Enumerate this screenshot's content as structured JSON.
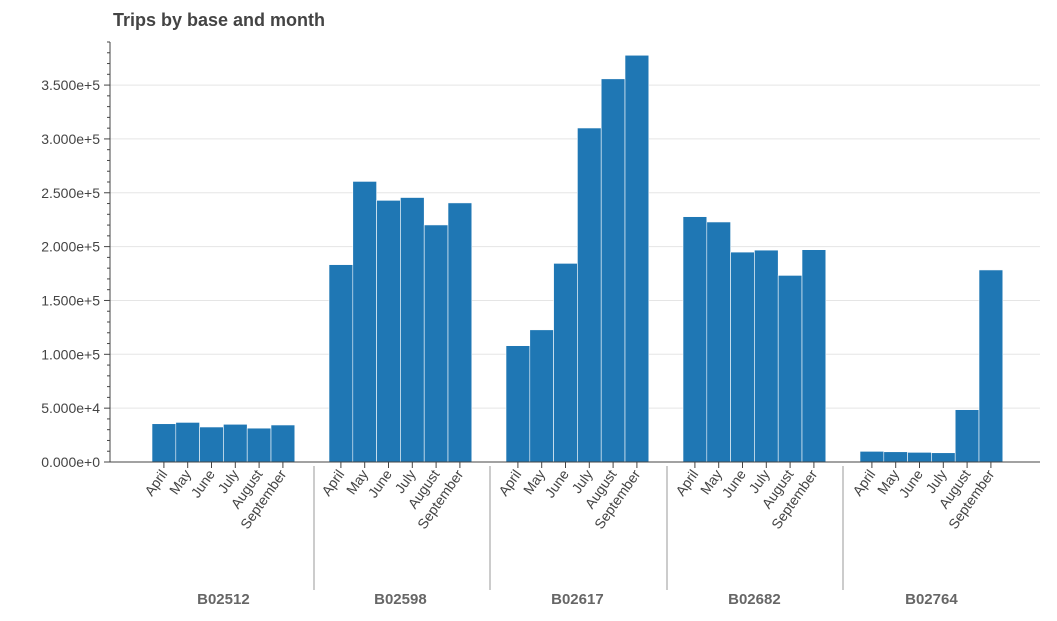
{
  "chart_data": {
    "type": "bar",
    "title": "Trips by base and month",
    "xlabel": "",
    "ylabel": "",
    "ylim": [
      0,
      390000
    ],
    "yticks": [
      {
        "value": 0,
        "label": "0.000e+0"
      },
      {
        "value": 50000,
        "label": "5.000e+4"
      },
      {
        "value": 100000,
        "label": "1.000e+5"
      },
      {
        "value": 150000,
        "label": "1.500e+5"
      },
      {
        "value": 200000,
        "label": "2.000e+5"
      },
      {
        "value": 250000,
        "label": "2.500e+5"
      },
      {
        "value": 300000,
        "label": "3.000e+5"
      },
      {
        "value": 350000,
        "label": "3.500e+5"
      }
    ],
    "grid": true,
    "color": "#1f77b4",
    "months": [
      "April",
      "May",
      "June",
      "July",
      "August",
      "September"
    ],
    "groups": [
      {
        "name": "B02512",
        "values": [
          35536,
          36765,
          32509,
          35021,
          31435,
          34370
        ]
      },
      {
        "name": "B02598",
        "values": [
          183263,
          260549,
          242975,
          245597,
          220129,
          240600
        ]
      },
      {
        "name": "B02617",
        "values": [
          108001,
          122734,
          184460,
          310160,
          355803,
          377695
        ]
      },
      {
        "name": "B02682",
        "values": [
          227808,
          222883,
          194926,
          196754,
          173280,
          197138
        ]
      },
      {
        "name": "B02764",
        "values": [
          9908,
          9504,
          8974,
          8589,
          48591,
          178333
        ]
      }
    ]
  }
}
